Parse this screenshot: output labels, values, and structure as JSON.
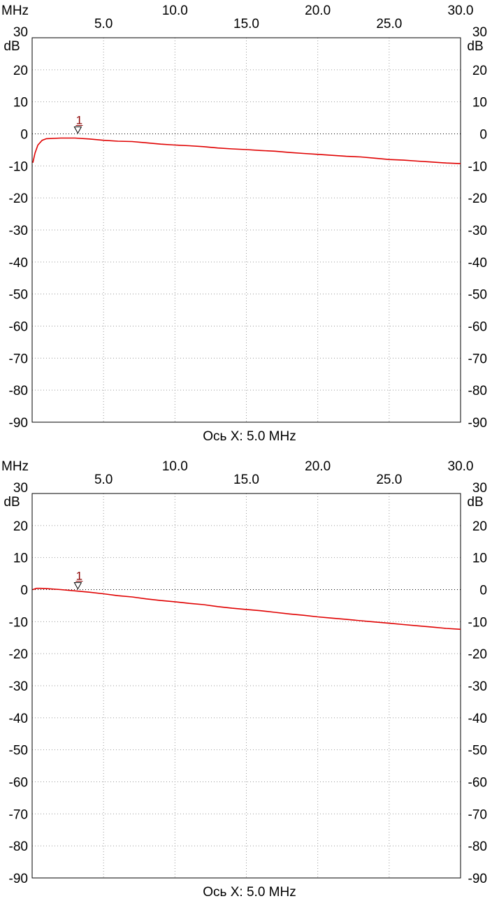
{
  "chart_data": [
    {
      "type": "line",
      "x_unit": "MHz",
      "y_unit": "dB",
      "x_caption": "Ось X: 5.0 MHz",
      "xlim": [
        0,
        30
      ],
      "ylim": [
        -90,
        30
      ],
      "x_ticks_top": [
        "10.0",
        "20.0",
        "30.0"
      ],
      "x_ticks_bottom": [
        "5.0",
        "15.0",
        "25.0"
      ],
      "y_ticks": [
        "30",
        "20",
        "10",
        "0",
        "-10",
        "-20",
        "-30",
        "-40",
        "-50",
        "-60",
        "-70",
        "-80",
        "-90"
      ],
      "grid": true,
      "marker": {
        "label": "1",
        "x": 3.2,
        "y": 0
      },
      "series": [
        {
          "color": "#e00000",
          "x": [
            0.05,
            0.2,
            0.4,
            0.7,
            1.0,
            2.0,
            3.0,
            4.0,
            5.0,
            6.0,
            7.0,
            8.0,
            9.0,
            10.0,
            11.0,
            12.0,
            13.0,
            14.0,
            15.0,
            16.0,
            17.0,
            18.0,
            19.0,
            20.0,
            21.0,
            22.0,
            23.0,
            24.0,
            25.0,
            26.0,
            27.0,
            28.0,
            29.0,
            30.0
          ],
          "y": [
            -9,
            -6,
            -3.5,
            -2,
            -1.5,
            -1.3,
            -1.3,
            -1.6,
            -2.0,
            -2.3,
            -2.4,
            -2.8,
            -3.2,
            -3.5,
            -3.7,
            -4.0,
            -4.4,
            -4.7,
            -4.9,
            -5.2,
            -5.4,
            -5.8,
            -6.1,
            -6.4,
            -6.7,
            -7.0,
            -7.2,
            -7.6,
            -8.0,
            -8.2,
            -8.5,
            -8.8,
            -9.1,
            -9.3
          ]
        }
      ]
    },
    {
      "type": "line",
      "x_unit": "MHz",
      "y_unit": "dB",
      "x_caption": "Ось X: 5.0 MHz",
      "xlim": [
        0,
        30
      ],
      "ylim": [
        -90,
        30
      ],
      "x_ticks_top": [
        "10.0",
        "20.0",
        "30.0"
      ],
      "x_ticks_bottom": [
        "5.0",
        "15.0",
        "25.0"
      ],
      "y_ticks": [
        "30",
        "20",
        "10",
        "0",
        "-10",
        "-20",
        "-30",
        "-40",
        "-50",
        "-60",
        "-70",
        "-80",
        "-90"
      ],
      "grid": true,
      "marker": {
        "label": "1",
        "x": 3.2,
        "y": 0
      },
      "series": [
        {
          "color": "#e00000",
          "x": [
            0.05,
            0.3,
            0.6,
            1.0,
            2.0,
            3.0,
            4.0,
            5.0,
            6.0,
            7.0,
            8.0,
            9.0,
            10.0,
            11.0,
            12.0,
            13.0,
            14.0,
            15.0,
            16.0,
            17.0,
            18.0,
            19.0,
            20.0,
            21.0,
            22.0,
            23.0,
            24.0,
            25.0,
            26.0,
            27.0,
            28.0,
            29.0,
            30.0
          ],
          "y": [
            0,
            0.4,
            0.4,
            0.3,
            0,
            -0.4,
            -0.8,
            -1.3,
            -1.9,
            -2.3,
            -2.9,
            -3.4,
            -3.8,
            -4.3,
            -4.7,
            -5.3,
            -5.8,
            -6.2,
            -6.6,
            -7.1,
            -7.6,
            -8.0,
            -8.5,
            -8.9,
            -9.3,
            -9.7,
            -10.1,
            -10.5,
            -10.9,
            -11.3,
            -11.7,
            -12.1,
            -12.4
          ]
        }
      ]
    }
  ]
}
